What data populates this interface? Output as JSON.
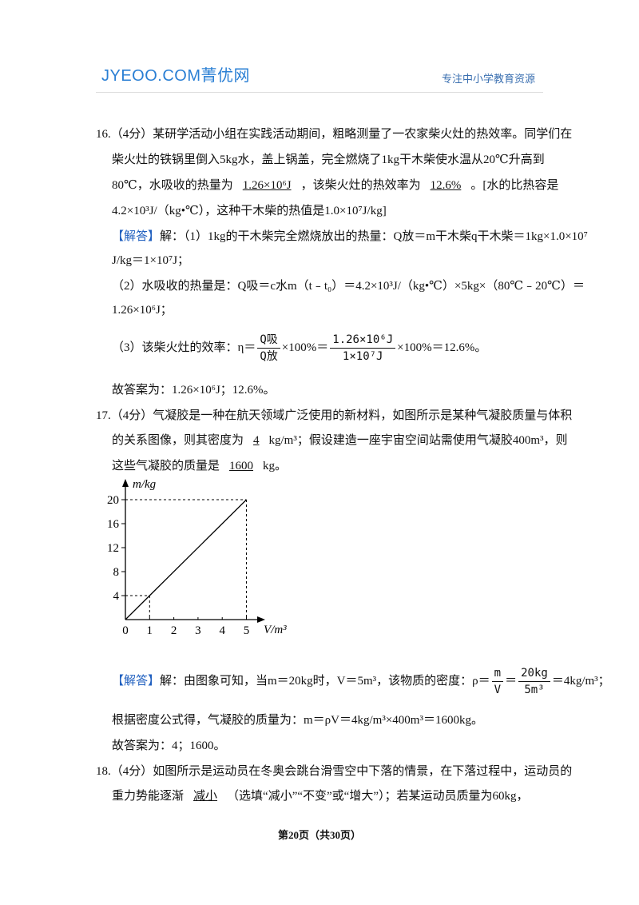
{
  "header": {
    "logo": "JYEOO.COM菁优网",
    "slogan": "专注中小学教育资源"
  },
  "q16": {
    "stem": [
      "16.（4分）某研学活动小组在实践活动期间，粗略测量了一农家柴火灶的热效率。同学们在",
      "柴火灶的铁锅里倒入5kg水，盖上锅盖，完全燃烧了1kg干木柴使水温从20℃升高到",
      "80℃，水吸收的热量为",
      "，该柴火灶的热效率为",
      "。[水的比热容是",
      "4.2×10³J/（kg•℃），这种干木柴的热值是1.0×10⁷J/kg]"
    ],
    "answers": [
      "1.26×10⁶J",
      "12.6%"
    ],
    "solution_label": "【解答】",
    "solution": [
      "解：（1）1kg的干木柴完全燃烧放出的热量：Q放＝m干木柴q干木柴＝1kg×1.0×10⁷",
      "J/kg＝1×10⁷J；",
      "（2）水吸收的热量是：Q吸＝c水m（t﹣t₀）＝4.2×10³J/（kg•℃）×5kg×（80℃﹣20℃）＝",
      "1.26×10⁶J；"
    ],
    "formula": {
      "prefix": "（3）该柴火灶的效率：η＝",
      "num1": "Q吸",
      "den1": "Q放",
      "mid": "×100%＝",
      "num2": "1.26×10⁶J",
      "den2": "1×10⁷J",
      "suffix": "×100%＝12.6%。"
    },
    "final": "故答案为：1.26×10⁶J；12.6%。"
  },
  "q17": {
    "stem": [
      "17.（4分）气凝胶是一种在航天领域广泛使用的新材料，如图所示是某种气凝胶质量与体积",
      "的关系图像，则其密度为",
      "kg/m³；假设建造一座宇宙空间站需使用气凝胶400m³，则",
      "这些气凝胶的质量是",
      "kg。"
    ],
    "answers": [
      "4",
      "1600"
    ],
    "solution_label": "【解答】",
    "formula": {
      "prefix": "解：由图象可知，当m＝20kg时，V＝5m³，该物质的密度：ρ＝",
      "num1": "m",
      "den1": "V",
      "mid": "＝",
      "num2": "20kg",
      "den2": "5m³",
      "suffix": "＝4kg/m³；"
    },
    "solution": [
      "根据密度公式得，气凝胶的质量为：m＝ρV＝4kg/m³×400m³＝1600kg。"
    ],
    "final": "故答案为：4；1600。"
  },
  "chart_data": {
    "type": "line",
    "xlabel": "V/m³",
    "ylabel": "m/kg",
    "x": [
      0,
      1,
      5
    ],
    "values": [
      0,
      4,
      20
    ],
    "color": "#000000",
    "xlim": [
      0,
      5.6
    ],
    "ylim": [
      0,
      22.5
    ],
    "xticks": [
      0,
      1,
      2,
      3,
      4,
      5
    ],
    "yticks": [
      4,
      8,
      12,
      16,
      20
    ],
    "guides": true
  },
  "q18": {
    "stem": [
      "18.（4分）如图所示是运动员在冬奥会跳台滑雪空中下落的情景，在下落过程中，运动员的",
      "重力势能逐渐",
      "（选填“减小”“不变”或“增大”）；若某运动员质量为60kg，"
    ],
    "answers": [
      "减小"
    ]
  },
  "footer": "第20页（共30页）"
}
